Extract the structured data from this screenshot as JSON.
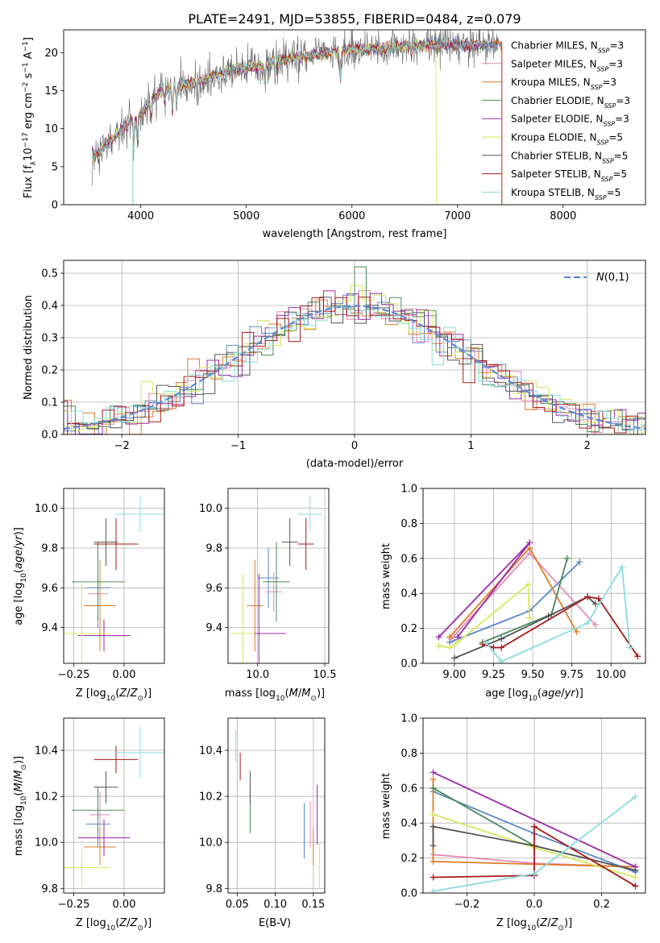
{
  "colors": [
    "#5b87c9",
    "#e68ab8",
    "#e07b27",
    "#4a8a5a",
    "#9a2aa8",
    "#d4e85a",
    "#555555",
    "#a81a1a",
    "#88dce0"
  ],
  "chart_data": [
    {
      "type": "line",
      "id": "spectrum",
      "title": "PLATE=2491, MJD=53855, FIBERID=0484, z=0.079",
      "xlabel": "wavelength [Angstrom, rest frame]",
      "ylabel": "Flux [f_λ 10^-17 erg cm^-2 s^-1 A^-1]",
      "xlim": [
        3270,
        8780
      ],
      "ylim": [
        0,
        23
      ],
      "xticks": [
        4000,
        5000,
        6000,
        7000,
        8000
      ],
      "yticks": [
        0,
        5,
        10,
        15,
        20
      ],
      "legend_position": "right",
      "legend": [
        {
          "pre": "Chabrier MILES, N",
          "sub": "SSP",
          "post": "=3"
        },
        {
          "pre": "Salpeter MILES, N",
          "sub": "SSP",
          "post": "=3"
        },
        {
          "pre": "Kroupa MILES, N",
          "sub": "SSP",
          "post": "=3"
        },
        {
          "pre": "Chabrier ELODIE, N",
          "sub": "SSP",
          "post": "=3"
        },
        {
          "pre": "Salpeter ELODIE, N",
          "sub": "SSP",
          "post": "=3"
        },
        {
          "pre": "Kroupa ELODIE, N",
          "sub": "SSP",
          "post": "=5"
        },
        {
          "pre": "Chabrier STELIB, N",
          "sub": "SSP",
          "post": "=5"
        },
        {
          "pre": "Salpeter STELIB, N",
          "sub": "SSP",
          "post": "=5"
        },
        {
          "pre": "Kroupa STELIB, N",
          "sub": "SSP",
          "post": "=5"
        }
      ],
      "continuum": [
        [
          3550,
          6.5
        ],
        [
          3650,
          7.5
        ],
        [
          3800,
          9.5
        ],
        [
          3900,
          11
        ],
        [
          4000,
          12
        ],
        [
          4200,
          15
        ],
        [
          4500,
          16
        ],
        [
          4800,
          17.5
        ],
        [
          5000,
          18
        ],
        [
          5200,
          18.5
        ],
        [
          5500,
          19.5
        ],
        [
          5800,
          20
        ],
        [
          6000,
          20.5
        ],
        [
          6300,
          20.5
        ],
        [
          6600,
          21
        ],
        [
          7000,
          21
        ],
        [
          7500,
          21
        ],
        [
          8000,
          21.2
        ],
        [
          8400,
          21
        ]
      ],
      "absorption_lines": [
        [
          3934,
          4.5
        ],
        [
          3968,
          3.5
        ],
        [
          4102,
          2
        ],
        [
          4227,
          1.5
        ],
        [
          4300,
          3
        ],
        [
          4340,
          2
        ],
        [
          4861,
          1.5
        ],
        [
          5175,
          3
        ],
        [
          5270,
          1.5
        ],
        [
          5890,
          4
        ],
        [
          6563,
          1.5
        ]
      ]
    },
    {
      "type": "histogram",
      "id": "residuals",
      "xlabel": "(data-model)/error",
      "ylabel": "Normed distribution",
      "xlim": [
        -2.5,
        2.5
      ],
      "ylim": [
        0,
        0.54
      ],
      "xticks": [
        -2,
        -1,
        0,
        1,
        2
      ],
      "yticks": [
        0.0,
        0.1,
        0.2,
        0.3,
        0.4,
        0.5
      ],
      "bin_width": 0.1,
      "reference_curve": {
        "name": "N(0,1)",
        "mean": 0,
        "sigma": 1
      },
      "legend_position": "top-right",
      "grid": true
    },
    {
      "type": "scatter",
      "id": "age_vs_Z",
      "xlabel": "Z [log10(Z/Z⊙)]",
      "ylabel": "age  [log10(age/yr)]",
      "xlim": [
        -0.3,
        0.2
      ],
      "ylim": [
        9.22,
        10.1
      ],
      "xticks": [
        -0.25,
        0.0
      ],
      "yticks": [
        9.4,
        9.6,
        9.8,
        10.0
      ],
      "points": [
        {
          "x": -0.13,
          "y": 9.6,
          "xerr": 0.06,
          "yerr": 0.2
        },
        {
          "x": -0.13,
          "y": 9.57,
          "xerr": 0.05,
          "yerr": 0.15
        },
        {
          "x": -0.12,
          "y": 9.51,
          "xerr": 0.08,
          "yerr": 0.23
        },
        {
          "x": -0.13,
          "y": 9.63,
          "xerr": 0.13,
          "yerr": 0.2
        },
        {
          "x": -0.1,
          "y": 9.36,
          "xerr": 0.13,
          "yerr": 0.08
        },
        {
          "x": -0.21,
          "y": 9.37,
          "xerr": 0.14,
          "yerr": 0.25
        },
        {
          "x": -0.09,
          "y": 9.83,
          "xerr": 0.06,
          "yerr": 0.12
        },
        {
          "x": -0.04,
          "y": 9.82,
          "xerr": 0.11,
          "yerr": 0.13
        },
        {
          "x": 0.08,
          "y": 9.97,
          "xerr": 0.12,
          "yerr": 0.09
        }
      ],
      "grid": true
    },
    {
      "type": "scatter",
      "id": "age_vs_mass",
      "xlabel": "mass [log10(M/M⊙)]",
      "ylabel": "",
      "xlim": [
        9.78,
        10.53
      ],
      "ylim": [
        9.22,
        10.1
      ],
      "xticks": [
        10.0,
        10.5
      ],
      "yticks": [
        9.4,
        9.6,
        9.8,
        10.0
      ],
      "points": [
        {
          "x": 10.08,
          "y": 9.65,
          "xerr": 0.08,
          "yerr": 0.15
        },
        {
          "x": 10.12,
          "y": 9.58,
          "xerr": 0.06,
          "yerr": 0.1
        },
        {
          "x": 9.98,
          "y": 9.51,
          "xerr": 0.06,
          "yerr": 0.23
        },
        {
          "x": 10.14,
          "y": 9.63,
          "xerr": 0.1,
          "yerr": 0.2
        },
        {
          "x": 10.01,
          "y": 9.37,
          "xerr": 0.2,
          "yerr": 0.3
        },
        {
          "x": 9.89,
          "y": 9.37,
          "xerr": 0.09,
          "yerr": 0.3
        },
        {
          "x": 10.24,
          "y": 9.83,
          "xerr": 0.06,
          "yerr": 0.12
        },
        {
          "x": 10.36,
          "y": 9.82,
          "xerr": 0.06,
          "yerr": 0.13
        },
        {
          "x": 10.39,
          "y": 9.97,
          "xerr": 0.09,
          "yerr": 0.09
        }
      ],
      "grid": true
    },
    {
      "type": "line",
      "id": "weight_vs_age",
      "xlabel": "age  [log10(age/yr)]",
      "ylabel": "mass weight",
      "xlim": [
        8.8,
        10.22
      ],
      "ylim": [
        0.0,
        1.0
      ],
      "xticks": [
        9.0,
        9.25,
        9.5,
        9.75,
        10.0
      ],
      "yticks": [
        0.0,
        0.2,
        0.4,
        0.6,
        0.8,
        1.0
      ],
      "series": [
        {
          "x": [
            8.97,
            9.48,
            9.8
          ],
          "y": [
            0.12,
            0.3,
            0.58
          ]
        },
        {
          "x": [
            8.98,
            9.48,
            9.9
          ],
          "y": [
            0.14,
            0.63,
            0.22
          ]
        },
        {
          "x": [
            8.97,
            9.48,
            9.78
          ],
          "y": [
            0.15,
            0.66,
            0.18
          ]
        },
        {
          "x": [
            9.18,
            9.62,
            9.72
          ],
          "y": [
            0.12,
            0.28,
            0.6
          ]
        },
        {
          "x": [
            8.9,
            9.48,
            9.02
          ],
          "y": [
            0.15,
            0.69,
            0.15
          ]
        },
        {
          "x": [
            8.9,
            8.97,
            9.02,
            9.47,
            9.48
          ],
          "y": [
            0.1,
            0.09,
            0.12,
            0.45,
            0.26
          ]
        },
        {
          "x": [
            9.0,
            9.3,
            9.6,
            9.85,
            9.9
          ],
          "y": [
            0.03,
            0.14,
            0.27,
            0.38,
            0.34
          ]
        },
        {
          "x": [
            9.18,
            9.25,
            9.3,
            9.85,
            9.92,
            10.17
          ],
          "y": [
            0.11,
            0.09,
            0.09,
            0.38,
            0.37,
            0.04
          ]
        },
        {
          "x": [
            9.2,
            9.3,
            9.85,
            10.07,
            10.12
          ],
          "y": [
            0.12,
            0.01,
            0.23,
            0.55,
            0.09
          ]
        }
      ],
      "grid": true
    },
    {
      "type": "scatter",
      "id": "mass_vs_Z",
      "xlabel": "Z [log10(Z/Z⊙)]",
      "ylabel": "mass [log10(M/M⊙)]",
      "xlim": [
        -0.3,
        0.2
      ],
      "ylim": [
        9.78,
        10.54
      ],
      "xticks": [
        -0.25,
        0.0
      ],
      "yticks": [
        9.8,
        10.0,
        10.2,
        10.4
      ],
      "points": [
        {
          "x": -0.13,
          "y": 10.08,
          "xerr": 0.06,
          "yerr": 0.1
        },
        {
          "x": -0.12,
          "y": 10.12,
          "xerr": 0.05,
          "yerr": 0.1
        },
        {
          "x": -0.12,
          "y": 9.98,
          "xerr": 0.08,
          "yerr": 0.08
        },
        {
          "x": -0.13,
          "y": 10.14,
          "xerr": 0.13,
          "yerr": 0.1
        },
        {
          "x": -0.1,
          "y": 10.02,
          "xerr": 0.13,
          "yerr": 0.08
        },
        {
          "x": -0.21,
          "y": 9.89,
          "xerr": 0.14,
          "yerr": 0.08
        },
        {
          "x": -0.09,
          "y": 10.24,
          "xerr": 0.06,
          "yerr": 0.07
        },
        {
          "x": -0.04,
          "y": 10.36,
          "xerr": 0.11,
          "yerr": 0.06
        },
        {
          "x": 0.08,
          "y": 10.39,
          "xerr": 0.12,
          "yerr": 0.11
        }
      ],
      "grid": true
    },
    {
      "type": "scatter",
      "id": "mass_vs_ebv",
      "xlabel": "E(B-V)",
      "ylabel": "",
      "xlim": [
        0.038,
        0.165
      ],
      "ylim": [
        9.78,
        10.54
      ],
      "xticks": [
        0.05,
        0.1,
        0.15
      ],
      "yticks": [
        9.8,
        10.0,
        10.2,
        10.4
      ],
      "points": [
        {
          "x": 0.138,
          "y": 10.05,
          "xerr": 0.0,
          "yerr": 0.12
        },
        {
          "x": 0.146,
          "y": 10.08,
          "xerr": 0.0,
          "yerr": 0.1
        },
        {
          "x": 0.15,
          "y": 9.98,
          "xerr": 0.0,
          "yerr": 0.08
        },
        {
          "x": 0.067,
          "y": 10.14,
          "xerr": 0.0,
          "yerr": 0.1
        },
        {
          "x": 0.155,
          "y": 10.12,
          "xerr": 0.0,
          "yerr": 0.13
        },
        {
          "x": 0.158,
          "y": 9.9,
          "xerr": 0.0,
          "yerr": 0.1
        },
        {
          "x": 0.067,
          "y": 10.24,
          "xerr": 0.0,
          "yerr": 0.07
        },
        {
          "x": 0.054,
          "y": 10.33,
          "xerr": 0.0,
          "yerr": 0.06
        },
        {
          "x": 0.048,
          "y": 10.42,
          "xerr": 0.0,
          "yerr": 0.07
        }
      ],
      "grid": true
    },
    {
      "type": "line",
      "id": "weight_vs_Z",
      "xlabel": "Z [log10(Z/Z⊙)]",
      "ylabel": "mass weight",
      "xlim": [
        -0.33,
        0.33
      ],
      "ylim": [
        0.0,
        1.0
      ],
      "xticks": [
        -0.2,
        0.0,
        0.2
      ],
      "yticks": [
        0.0,
        0.2,
        0.4,
        0.6,
        0.8,
        1.0
      ],
      "series": [
        {
          "x": [
            -0.3,
            0.0,
            0.3
          ],
          "y": [
            0.58,
            0.34,
            0.12
          ]
        },
        {
          "x": [
            -0.3,
            0.0,
            0.3
          ],
          "y": [
            0.22,
            0.17,
            0.15
          ]
        },
        {
          "x": [
            -0.3,
            -0.3,
            0.3
          ],
          "y": [
            0.65,
            0.18,
            0.15
          ]
        },
        {
          "x": [
            -0.3,
            0.0,
            0.3
          ],
          "y": [
            0.6,
            0.27,
            0.13
          ]
        },
        {
          "x": [
            -0.3,
            0.3
          ],
          "y": [
            0.69,
            0.15
          ]
        },
        {
          "x": [
            -0.3,
            0.0,
            0.3
          ],
          "y": [
            0.45,
            0.26,
            0.09
          ]
        },
        {
          "x": [
            -0.3,
            -0.3,
            0.0,
            0.3
          ],
          "y": [
            0.27,
            0.38,
            0.27,
            0.13
          ]
        },
        {
          "x": [
            -0.3,
            0.0,
            0.0,
            0.3
          ],
          "y": [
            0.09,
            0.1,
            0.38,
            0.04
          ]
        },
        {
          "x": [
            -0.3,
            0.0,
            0.3
          ],
          "y": [
            0.01,
            0.11,
            0.55
          ]
        }
      ],
      "grid": true
    }
  ]
}
